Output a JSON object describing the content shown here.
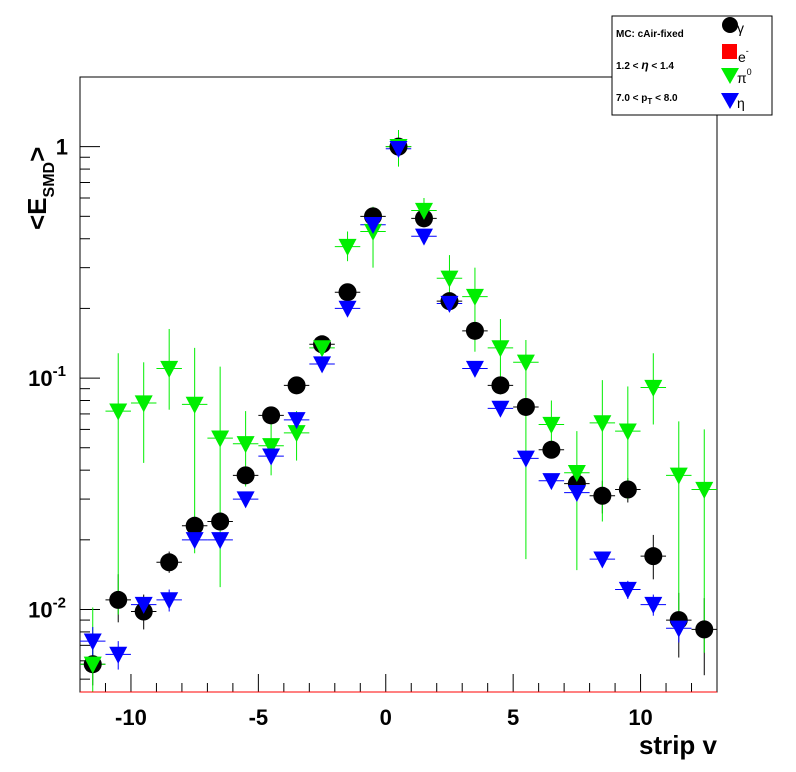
{
  "chart_data": {
    "type": "scatter",
    "title": "",
    "xlabel": "strip v",
    "ylabel": "<E_SMD>",
    "x_log": false,
    "y_log": true,
    "xlim": [
      -12,
      13
    ],
    "ylim": [
      0.0044,
      2.0
    ],
    "x_ticks": [
      -10,
      -5,
      0,
      5,
      10
    ],
    "y_ticks": [
      {
        "value": 0.01,
        "base": "10",
        "exp": "-2"
      },
      {
        "value": 0.1,
        "base": "10",
        "exp": "-1"
      },
      {
        "value": 1,
        "base": "1",
        "exp": ""
      }
    ],
    "legend": {
      "placement": "top-right",
      "info": [
        "MC: cAir-fixed",
        "1.2 < η < 1.4",
        "7.0 < p_T < 8.0"
      ],
      "entries": [
        "γ",
        "e-",
        "π0",
        "η"
      ]
    },
    "series": [
      {
        "name": "γ",
        "marker": "circle",
        "color": "#000000",
        "points": [
          [
            -11.5,
            0.0058,
            0.0047,
            0.0072
          ],
          [
            -10.5,
            0.011,
            0.0088,
            0.0142
          ],
          [
            -9.5,
            0.0098,
            0.0082,
            0.0116
          ],
          [
            -8.5,
            0.016,
            0.0144,
            0.0178
          ],
          [
            -7.5,
            0.023,
            0.021,
            0.0252
          ],
          [
            -6.5,
            0.024,
            0.022,
            0.0262
          ],
          [
            -5.5,
            0.038,
            0.0355,
            0.0405
          ],
          [
            -4.5,
            0.069,
            0.065,
            0.073
          ],
          [
            -3.5,
            0.093,
            0.088,
            0.098
          ],
          [
            -2.5,
            0.14,
            0.133,
            0.147
          ],
          [
            -1.5,
            0.235,
            0.227,
            0.243
          ],
          [
            -0.5,
            0.5,
            0.488,
            0.512
          ],
          [
            0.5,
            1.0,
            0.98,
            1.02
          ],
          [
            1.5,
            0.49,
            0.478,
            0.502
          ],
          [
            2.5,
            0.215,
            0.208,
            0.222
          ],
          [
            3.5,
            0.16,
            0.153,
            0.167
          ],
          [
            4.5,
            0.093,
            0.088,
            0.098
          ],
          [
            5.5,
            0.075,
            0.07,
            0.08
          ],
          [
            6.5,
            0.049,
            0.045,
            0.053
          ],
          [
            7.5,
            0.035,
            0.032,
            0.038
          ],
          [
            8.5,
            0.031,
            0.026,
            0.036
          ],
          [
            9.5,
            0.033,
            0.029,
            0.037
          ],
          [
            10.5,
            0.017,
            0.0135,
            0.021
          ],
          [
            11.5,
            0.009,
            0.0062,
            0.0118
          ],
          [
            12.5,
            0.0082,
            0.0052,
            0.0112
          ]
        ]
      },
      {
        "name": "e-",
        "marker": "square",
        "color": "#ff0000",
        "points": []
      },
      {
        "name": "π0",
        "marker": "triangle-down",
        "color": "#00ee00",
        "points": [
          [
            -11.5,
            0.0058,
            0.0044,
            0.0102
          ],
          [
            -10.5,
            0.072,
            0.0095,
            0.128
          ],
          [
            -9.5,
            0.078,
            0.043,
            0.117
          ],
          [
            -8.5,
            0.11,
            0.073,
            0.163
          ],
          [
            -7.5,
            0.077,
            0.0175,
            0.135
          ],
          [
            -6.5,
            0.055,
            0.0125,
            0.112
          ],
          [
            -5.5,
            0.052,
            0.034,
            0.072
          ],
          [
            -4.5,
            0.051,
            0.038,
            0.066
          ],
          [
            -3.5,
            0.058,
            0.044,
            0.072
          ],
          [
            -2.5,
            0.135,
            0.125,
            0.146
          ],
          [
            -1.5,
            0.37,
            0.32,
            0.43
          ],
          [
            -0.5,
            0.43,
            0.3,
            0.55
          ],
          [
            0.5,
            1.0,
            0.82,
            1.18
          ],
          [
            1.5,
            0.53,
            0.45,
            0.6
          ],
          [
            2.5,
            0.27,
            0.2,
            0.34
          ],
          [
            3.5,
            0.225,
            0.13,
            0.3
          ],
          [
            4.5,
            0.135,
            0.085,
            0.18
          ],
          [
            5.5,
            0.117,
            0.0165,
            0.146
          ],
          [
            6.5,
            0.063,
            0.046,
            0.08
          ],
          [
            7.5,
            0.039,
            0.0148,
            0.059
          ],
          [
            8.5,
            0.064,
            0.024,
            0.098
          ],
          [
            9.5,
            0.059,
            0.03,
            0.092
          ],
          [
            10.5,
            0.091,
            0.063,
            0.128
          ],
          [
            11.5,
            0.038,
            0.0095,
            0.065
          ],
          [
            12.5,
            0.033,
            0.0065,
            0.06
          ]
        ]
      },
      {
        "name": "η",
        "marker": "triangle-down",
        "color": "#0000ff",
        "points": [
          [
            -11.5,
            0.0073,
            0.0062,
            0.0084
          ],
          [
            -10.5,
            0.0064,
            0.0055,
            0.0073
          ],
          [
            -9.5,
            0.0105,
            0.0097,
            0.0113
          ],
          [
            -8.5,
            0.011,
            0.0098,
            0.0122
          ],
          [
            -7.5,
            0.02,
            0.0186,
            0.0214
          ],
          [
            -6.5,
            0.02,
            0.0186,
            0.0214
          ],
          [
            -5.5,
            0.03,
            0.0283,
            0.0317
          ],
          [
            -4.5,
            0.046,
            0.0434,
            0.0486
          ],
          [
            -3.5,
            0.066,
            0.0625,
            0.0695
          ],
          [
            -2.5,
            0.115,
            0.11,
            0.12
          ],
          [
            -1.5,
            0.2,
            0.194,
            0.206
          ],
          [
            -0.5,
            0.46,
            0.448,
            0.472
          ],
          [
            0.5,
            0.98,
            0.965,
            0.995
          ],
          [
            1.5,
            0.41,
            0.4,
            0.42
          ],
          [
            2.5,
            0.21,
            0.204,
            0.216
          ],
          [
            3.5,
            0.11,
            0.106,
            0.114
          ],
          [
            4.5,
            0.074,
            0.071,
            0.077
          ],
          [
            5.5,
            0.045,
            0.0425,
            0.0475
          ],
          [
            6.5,
            0.036,
            0.0338,
            0.0382
          ],
          [
            7.5,
            0.032,
            0.0299,
            0.0341
          ],
          [
            8.5,
            0.0165,
            0.0152,
            0.0178
          ],
          [
            9.5,
            0.0122,
            0.0111,
            0.0133
          ],
          [
            10.5,
            0.0105,
            0.0094,
            0.0116
          ],
          [
            11.5,
            0.0083,
            0.0072,
            0.0094
          ],
          [
            12.5,
            null,
            null,
            null
          ]
        ]
      }
    ]
  }
}
